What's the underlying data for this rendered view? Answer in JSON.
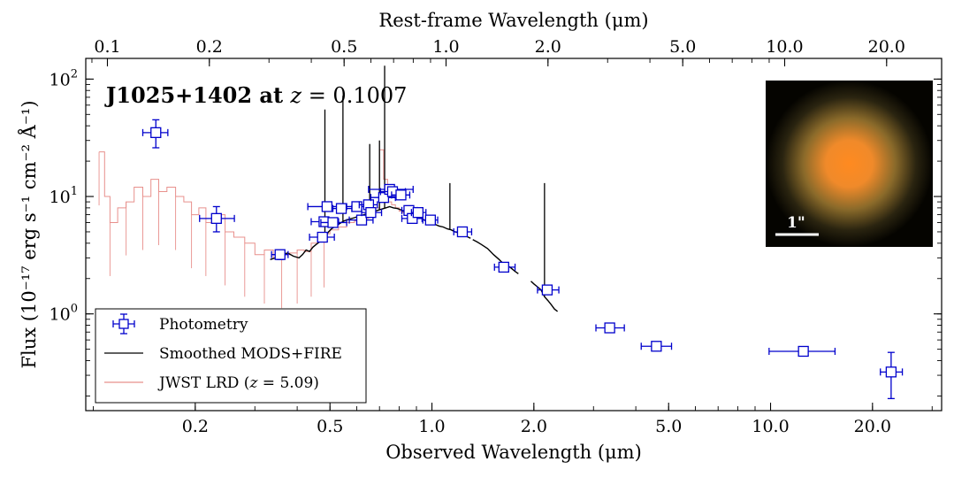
{
  "chart_data": {
    "type": "scatter",
    "title": "J1025+1402 at z = 0.1007",
    "title_parts": {
      "name": "J1025+1402 at ",
      "zvar": "z",
      "zval": " = 0.1007"
    },
    "xlabel": "Observed Wavelength (μm)",
    "x2label": "Rest-frame Wavelength  (μm)",
    "ylabel": "Flux (10⁻¹⁷ erg s⁻¹ cm⁻² Å⁻¹)",
    "xscale": "log",
    "yscale": "log",
    "xlim": [
      0.095,
      32
    ],
    "ylim": [
      0.15,
      150
    ],
    "redshift": 0.1007,
    "x_ticks": [
      {
        "value": 0.2,
        "label": "0.2"
      },
      {
        "value": 0.5,
        "label": "0.5"
      },
      {
        "value": 1.0,
        "label": "1.0"
      },
      {
        "value": 2.0,
        "label": "2.0"
      },
      {
        "value": 5.0,
        "label": "5.0"
      },
      {
        "value": 10.0,
        "label": "10.0"
      },
      {
        "value": 20.0,
        "label": "20.0"
      }
    ],
    "x2_ticks": [
      {
        "value": 0.1,
        "label": "0.1"
      },
      {
        "value": 0.2,
        "label": "0.2"
      },
      {
        "value": 0.5,
        "label": "0.5"
      },
      {
        "value": 1.0,
        "label": "1.0"
      },
      {
        "value": 2.0,
        "label": "2.0"
      },
      {
        "value": 5.0,
        "label": "5.0"
      },
      {
        "value": 10.0,
        "label": "10.0"
      },
      {
        "value": 20.0,
        "label": "20.0"
      }
    ],
    "y_ticks": [
      {
        "value": 1,
        "base": "10",
        "exp": "0"
      },
      {
        "value": 10,
        "base": "10",
        "exp": "1"
      },
      {
        "value": 100,
        "base": "10",
        "exp": "2"
      }
    ],
    "legend": {
      "position": "lower-left",
      "entries": [
        {
          "label": "Photometry",
          "marker": "square-errorbar",
          "color": "#0000cc"
        },
        {
          "label": "Smoothed MODS+FIRE",
          "marker": "line",
          "color": "#000000"
        },
        {
          "label_prefix": "JWST LRD (",
          "label_var": "z",
          "label_suffix": " = 5.09)",
          "marker": "line",
          "color": "#e8908c"
        }
      ]
    },
    "inset": {
      "description_label": "1\"",
      "position": "top-right"
    },
    "series": [
      {
        "name": "Photometry",
        "color": "#0000cc",
        "points": [
          {
            "x": 0.153,
            "y": 35,
            "xerr": [
              0.013,
              0.013
            ],
            "yerr": [
              9,
              10
            ]
          },
          {
            "x": 0.231,
            "y": 6.5,
            "xerr": [
              0.025,
              0.03
            ],
            "yerr": [
              1.5,
              1.7
            ]
          },
          {
            "x": 0.356,
            "y": 3.2,
            "xerr": [
              0.02,
              0.02
            ],
            "yerr": [
              0.3,
              0.3
            ]
          },
          {
            "x": 0.48,
            "y": 6.1,
            "xerr": [
              0.04,
              0.05
            ]
          },
          {
            "x": 0.475,
            "y": 4.5,
            "xerr": [
              0.04,
              0.04
            ]
          },
          {
            "x": 0.49,
            "y": 8.2,
            "xerr": [
              0.06,
              0.06
            ]
          },
          {
            "x": 0.51,
            "y": 6.0,
            "xerr": [
              0.04,
              0.05
            ]
          },
          {
            "x": 0.54,
            "y": 7.9,
            "xerr": [
              0.03,
              0.04
            ]
          },
          {
            "x": 0.6,
            "y": 8.2,
            "xerr": [
              0.04,
              0.04
            ]
          },
          {
            "x": 0.62,
            "y": 6.3,
            "xerr": [
              0.05,
              0.05
            ]
          },
          {
            "x": 0.65,
            "y": 8.5,
            "xerr": [
              0.04,
              0.04
            ]
          },
          {
            "x": 0.66,
            "y": 7.3,
            "xerr": [
              0.04,
              0.05
            ]
          },
          {
            "x": 0.72,
            "y": 9.8,
            "xerr": [
              0.06,
              0.06
            ]
          },
          {
            "x": 0.75,
            "y": 11.5,
            "xerr": [
              0.1,
              0.13
            ]
          },
          {
            "x": 0.765,
            "y": 11.0,
            "xerr": [
              0.06,
              0.07
            ]
          },
          {
            "x": 0.81,
            "y": 10.3,
            "xerr": [
              0.05,
              0.05
            ]
          },
          {
            "x": 0.855,
            "y": 7.6,
            "xerr": [
              0.04,
              0.05
            ]
          },
          {
            "x": 0.875,
            "y": 6.5,
            "xerr": [
              0.06,
              0.06
            ]
          },
          {
            "x": 0.91,
            "y": 7.3,
            "xerr": [
              0.04,
              0.05
            ]
          },
          {
            "x": 0.99,
            "y": 6.3,
            "xerr": [
              0.05,
              0.05
            ]
          },
          {
            "x": 1.23,
            "y": 5.0,
            "xerr": [
              0.07,
              0.08
            ]
          },
          {
            "x": 1.63,
            "y": 2.5,
            "xerr": [
              0.1,
              0.13
            ]
          },
          {
            "x": 2.19,
            "y": 1.6,
            "xerr": [
              0.14,
              0.18
            ]
          },
          {
            "x": 3.35,
            "y": 0.76,
            "xerr": [
              0.3,
              0.35
            ]
          },
          {
            "x": 4.6,
            "y": 0.53,
            "xerr": [
              0.45,
              0.5
            ]
          },
          {
            "x": 12.5,
            "y": 0.48,
            "xerr": [
              2.6,
              3.0
            ]
          },
          {
            "x": 22.7,
            "y": 0.32,
            "xerr": [
              1.6,
              1.8
            ],
            "yerr": [
              0.13,
              0.15
            ]
          }
        ]
      },
      {
        "name": "Smoothed MODS+FIRE",
        "color": "#000000",
        "x": [
          0.333,
          0.345,
          0.36,
          0.375,
          0.39,
          0.405,
          0.415,
          0.425,
          0.435,
          0.445,
          0.455,
          0.465,
          0.475,
          0.485,
          0.495,
          0.505,
          0.52,
          0.535,
          0.55,
          0.57,
          0.59,
          0.61,
          0.63,
          0.65,
          0.67,
          0.69,
          0.71,
          0.73,
          0.75,
          0.77,
          0.79,
          0.81,
          0.84,
          0.87,
          0.9,
          0.93,
          0.96,
          0.99,
          1.02,
          1.05,
          1.08,
          1.11,
          1.14,
          1.17,
          1.2,
          1.23,
          1.26,
          1.3
        ],
        "y": [
          2.9,
          3.0,
          3.2,
          3.3,
          3.1,
          3.0,
          3.2,
          3.5,
          3.4,
          3.7,
          3.9,
          4.1,
          4.3,
          4.6,
          5.0,
          5.3,
          5.6,
          5.9,
          6.2,
          6.4,
          6.6,
          6.8,
          7.0,
          7.2,
          7.4,
          7.6,
          7.8,
          8.0,
          8.2,
          8.0,
          7.9,
          7.7,
          7.3,
          7.0,
          6.8,
          6.5,
          6.2,
          6.0,
          5.8,
          5.6,
          5.5,
          5.3,
          5.2,
          5.0,
          4.9,
          4.7,
          4.6,
          4.4
        ],
        "segments": [
          {
            "x": [
              1.32,
              1.36,
              1.4,
              1.46,
              1.52,
              1.58,
              1.64,
              1.7,
              1.76,
              1.8
            ],
            "y": [
              4.3,
              4.1,
              3.9,
              3.6,
              3.2,
              2.9,
              2.6,
              2.5,
              2.3,
              2.2
            ]
          },
          {
            "x": [
              1.96,
              2.0,
              2.05,
              2.1,
              2.15,
              2.2,
              2.25,
              2.3,
              2.35
            ],
            "y": [
              1.9,
              1.8,
              1.7,
              1.6,
              1.4,
              1.3,
              1.2,
              1.1,
              1.05
            ]
          }
        ],
        "lines": [
          {
            "x": 0.483,
            "y": 55
          },
          {
            "x": 0.546,
            "y": 72
          },
          {
            "x": 0.725,
            "y": 130
          },
          {
            "x": 0.7,
            "y": 30
          },
          {
            "x": 0.655,
            "y": 28
          },
          {
            "x": 1.13,
            "y": 13
          },
          {
            "x": 2.15,
            "y": 13
          }
        ]
      },
      {
        "name": "JWST LRD (z = 5.09)",
        "color": "#e8908c",
        "x": [
          0.104,
          0.108,
          0.112,
          0.118,
          0.125,
          0.132,
          0.14,
          0.148,
          0.156,
          0.165,
          0.175,
          0.185,
          0.195,
          0.205,
          0.215,
          0.23,
          0.245,
          0.26,
          0.28,
          0.3,
          0.32,
          0.34,
          0.36,
          0.38,
          0.4,
          0.42,
          0.44,
          0.46,
          0.48,
          0.5,
          0.53,
          0.56,
          0.59,
          0.62,
          0.65,
          0.68,
          0.7,
          0.72,
          0.74,
          0.76,
          0.78,
          0.8,
          0.82,
          0.84,
          0.86,
          0.88,
          0.9
        ],
        "y": [
          24,
          10,
          6,
          8,
          9,
          12,
          10,
          14,
          11,
          12,
          10,
          9,
          7,
          8,
          6,
          7,
          5,
          4.5,
          4,
          3.2,
          3.5,
          3.0,
          3.2,
          3.3,
          3.5,
          3.4,
          4.0,
          4.3,
          4.8,
          5.2,
          5.5,
          6.0,
          6.2,
          6.5,
          7.0,
          8.0,
          25,
          14,
          9.0,
          8.5,
          8.0,
          7.5,
          7.3,
          7.0,
          6.8,
          6.6,
          6.2
        ]
      }
    ]
  }
}
